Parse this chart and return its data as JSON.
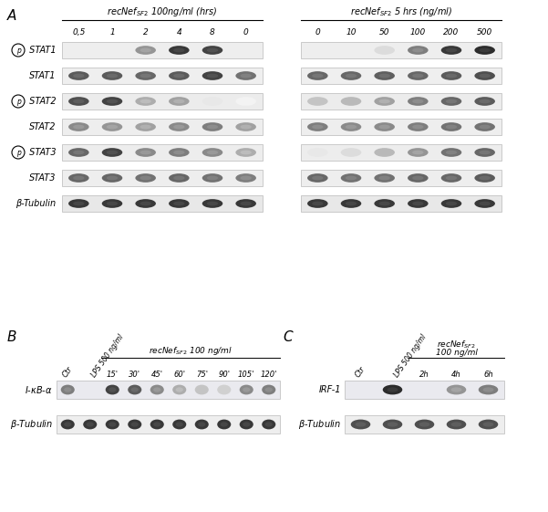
{
  "bg_color": "#ffffff",
  "panel_A_title": "A",
  "panel_B_title": "B",
  "panel_C_title": "C",
  "left_header": "recNef$_{SF2}$ 100ng/ml (hrs)",
  "right_header": "recNef$_{SF2}$ 5 hrs (ng/ml)",
  "left_cols": [
    "0,5",
    "1",
    "2",
    "4",
    "8",
    "0"
  ],
  "right_cols": [
    "0",
    "10",
    "50",
    "100",
    "200",
    "500"
  ],
  "row_labels_A": [
    "STAT1",
    "STAT1",
    "STAT2",
    "STAT2",
    "STAT3",
    "STAT3",
    "β-Tubulin"
  ],
  "has_circle_p": [
    true,
    false,
    true,
    false,
    true,
    false,
    false
  ],
  "panel_B_cols_time": [
    "15'",
    "30'",
    "45'",
    "60'",
    "75'",
    "90'",
    "105'",
    "120'"
  ],
  "panel_C_cols_time": [
    "2h",
    "4h",
    "6h"
  ],
  "pSTAT1_L": [
    0.0,
    0.0,
    0.45,
    0.85,
    0.8,
    0.0
  ],
  "STAT1_L": [
    0.7,
    0.7,
    0.65,
    0.7,
    0.8,
    0.6
  ],
  "pSTAT2_L": [
    0.75,
    0.8,
    0.35,
    0.4,
    0.1,
    0.05
  ],
  "STAT2_L": [
    0.5,
    0.45,
    0.4,
    0.5,
    0.55,
    0.4
  ],
  "pSTAT3_L": [
    0.65,
    0.8,
    0.5,
    0.55,
    0.5,
    0.35
  ],
  "STAT3_L": [
    0.65,
    0.65,
    0.6,
    0.65,
    0.6,
    0.55
  ],
  "bTub_L": [
    0.85,
    0.85,
    0.85,
    0.85,
    0.85,
    0.85
  ],
  "pSTAT1_R": [
    0.0,
    0.0,
    0.15,
    0.55,
    0.85,
    0.9
  ],
  "STAT1_R": [
    0.65,
    0.65,
    0.68,
    0.65,
    0.7,
    0.75
  ],
  "pSTAT2_R": [
    0.25,
    0.3,
    0.4,
    0.55,
    0.65,
    0.7
  ],
  "STAT2_R": [
    0.55,
    0.5,
    0.5,
    0.55,
    0.6,
    0.6
  ],
  "pSTAT3_R": [
    0.1,
    0.15,
    0.3,
    0.45,
    0.6,
    0.65
  ],
  "STAT3_R": [
    0.65,
    0.6,
    0.6,
    0.65,
    0.65,
    0.7
  ],
  "bTub_R": [
    0.85,
    0.85,
    0.85,
    0.85,
    0.85,
    0.85
  ],
  "ikba_intens": [
    0.55,
    0.0,
    0.8,
    0.7,
    0.5,
    0.35,
    0.25,
    0.2,
    0.5,
    0.55
  ],
  "btub_b": [
    0.85,
    0.85,
    0.85,
    0.85,
    0.85,
    0.85,
    0.85,
    0.85,
    0.85,
    0.85
  ],
  "irf1_intens": [
    0.0,
    0.9,
    0.0,
    0.45,
    0.55
  ],
  "btub_c": [
    0.75,
    0.75,
    0.75,
    0.75,
    0.75
  ]
}
